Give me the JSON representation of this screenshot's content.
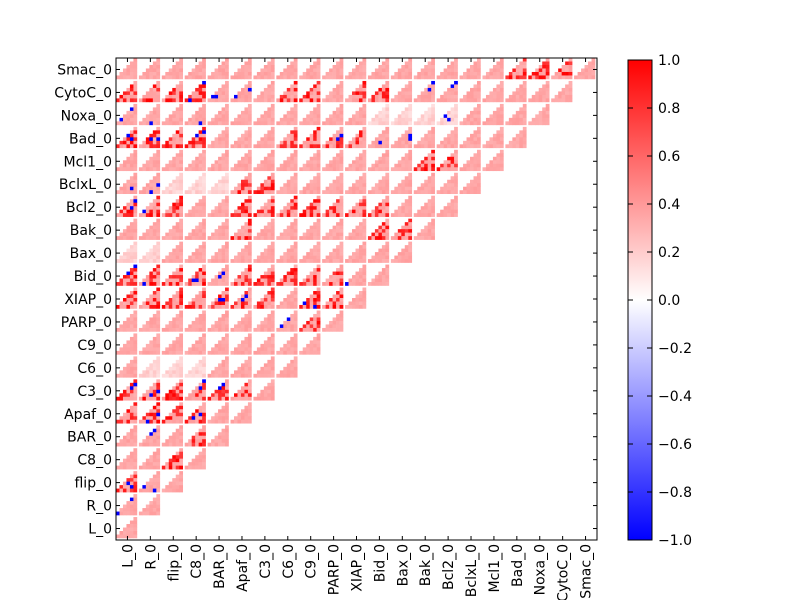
{
  "chart_data": {
    "type": "heatmap",
    "variables": [
      "L_0",
      "R_0",
      "flip_0",
      "C8_0",
      "BAR_0",
      "Apaf_0",
      "C3_0",
      "C6_0",
      "C9_0",
      "PARP_0",
      "XIAP_0",
      "Bid_0",
      "Bax_0",
      "Bak_0",
      "Bcl2_0",
      "BclxL_0",
      "Mcl1_0",
      "Bad_0",
      "Noxa_0",
      "CytoC_0",
      "Smac_0"
    ],
    "x_tick_labels": [
      "L_0",
      "R_0",
      "flip_0",
      "C8_0",
      "BAR_0",
      "Apaf_0",
      "C3_0",
      "C6_0",
      "C9_0",
      "PARP_0",
      "XIAP_0",
      "Bid_0",
      "Bax_0",
      "Bak_0",
      "Bcl2_0",
      "BclxL_0",
      "Mcl1_0",
      "Bad_0",
      "Noxa_0",
      "CytoC_0",
      "Smac_0"
    ],
    "y_tick_labels_top_to_bottom": [
      "Smac_0",
      "CytoC_0",
      "Noxa_0",
      "Bad_0",
      "Mcl1_0",
      "BclxL_0",
      "Bcl2_0",
      "Bak_0",
      "Bax_0",
      "Bid_0",
      "XIAP_0",
      "PARP_0",
      "C9_0",
      "C6_0",
      "C3_0",
      "Apaf_0",
      "BAR_0",
      "C8_0",
      "flip_0",
      "R_0",
      "L_0"
    ],
    "layout": "lower-left triangle of pairwise panels; each panel is a small triangular grid of correlation cells",
    "panel_base_value": 0.35,
    "color_scale": {
      "cmap": "bwr",
      "vmin": -1.0,
      "vmax": 1.0,
      "ticks": [
        "1.0",
        "0.8",
        "0.6",
        "0.4",
        "0.2",
        "0.0",
        "−0.2",
        "−0.4",
        "−0.6",
        "−0.8",
        "−1.0"
      ],
      "tick_values": [
        1.0,
        0.8,
        0.6,
        0.4,
        0.2,
        0.0,
        -0.2,
        -0.4,
        -0.6,
        -0.8,
        -1.0
      ],
      "colors": {
        "low": "#0000ff",
        "mid": "#ffffff",
        "high": "#ff0000"
      }
    },
    "strong_positive_pairs": [
      [
        "Smac_0",
        "Bad_0"
      ],
      [
        "Smac_0",
        "Noxa_0"
      ],
      [
        "Smac_0",
        "CytoC_0"
      ],
      [
        "CytoC_0",
        "L_0"
      ],
      [
        "CytoC_0",
        "R_0"
      ],
      [
        "CytoC_0",
        "flip_0"
      ],
      [
        "CytoC_0",
        "C8_0"
      ],
      [
        "CytoC_0",
        "C6_0"
      ],
      [
        "CytoC_0",
        "C9_0"
      ],
      [
        "CytoC_0",
        "XIAP_0"
      ],
      [
        "CytoC_0",
        "Bid_0"
      ],
      [
        "Bad_0",
        "L_0"
      ],
      [
        "Bad_0",
        "R_0"
      ],
      [
        "Bad_0",
        "flip_0"
      ],
      [
        "Bad_0",
        "C8_0"
      ],
      [
        "Bad_0",
        "C6_0"
      ],
      [
        "Bad_0",
        "C9_0"
      ],
      [
        "Bad_0",
        "PARP_0"
      ],
      [
        "Bad_0",
        "XIAP_0"
      ],
      [
        "Mcl1_0",
        "Bak_0"
      ],
      [
        "Mcl1_0",
        "Bcl2_0"
      ],
      [
        "BclxL_0",
        "Apaf_0"
      ],
      [
        "BclxL_0",
        "C3_0"
      ],
      [
        "Bcl2_0",
        "L_0"
      ],
      [
        "Bcl2_0",
        "R_0"
      ],
      [
        "Bcl2_0",
        "flip_0"
      ],
      [
        "Bcl2_0",
        "Apaf_0"
      ],
      [
        "Bcl2_0",
        "C3_0"
      ],
      [
        "Bcl2_0",
        "C6_0"
      ],
      [
        "Bcl2_0",
        "C9_0"
      ],
      [
        "Bcl2_0",
        "PARP_0"
      ],
      [
        "Bcl2_0",
        "XIAP_0"
      ],
      [
        "Bcl2_0",
        "Bid_0"
      ],
      [
        "Bak_0",
        "Apaf_0"
      ],
      [
        "Bak_0",
        "Bid_0"
      ],
      [
        "Bak_0",
        "Bax_0"
      ],
      [
        "Bid_0",
        "L_0"
      ],
      [
        "Bid_0",
        "R_0"
      ],
      [
        "Bid_0",
        "flip_0"
      ],
      [
        "Bid_0",
        "C8_0"
      ],
      [
        "Bid_0",
        "Apaf_0"
      ],
      [
        "Bid_0",
        "C3_0"
      ],
      [
        "Bid_0",
        "C6_0"
      ],
      [
        "Bid_0",
        "C9_0"
      ],
      [
        "Bid_0",
        "PARP_0"
      ],
      [
        "XIAP_0",
        "L_0"
      ],
      [
        "XIAP_0",
        "R_0"
      ],
      [
        "XIAP_0",
        "flip_0"
      ],
      [
        "XIAP_0",
        "C8_0"
      ],
      [
        "XIAP_0",
        "BAR_0"
      ],
      [
        "XIAP_0",
        "Apaf_0"
      ],
      [
        "XIAP_0",
        "C3_0"
      ],
      [
        "XIAP_0",
        "C9_0"
      ],
      [
        "XIAP_0",
        "PARP_0"
      ],
      [
        "PARP_0",
        "C9_0"
      ],
      [
        "C3_0",
        "L_0"
      ],
      [
        "C3_0",
        "R_0"
      ],
      [
        "C3_0",
        "flip_0"
      ],
      [
        "C3_0",
        "C8_0"
      ],
      [
        "C3_0",
        "BAR_0"
      ],
      [
        "C3_0",
        "Apaf_0"
      ],
      [
        "Apaf_0",
        "L_0"
      ],
      [
        "Apaf_0",
        "R_0"
      ],
      [
        "Apaf_0",
        "flip_0"
      ],
      [
        "Apaf_0",
        "C8_0"
      ],
      [
        "BAR_0",
        "C8_0"
      ],
      [
        "C8_0",
        "flip_0"
      ],
      [
        "flip_0",
        "L_0"
      ]
    ],
    "weak_pairs": [
      [
        "BclxL_0",
        "flip_0"
      ],
      [
        "BclxL_0",
        "C8_0"
      ],
      [
        "BclxL_0",
        "BAR_0"
      ],
      [
        "Bax_0",
        "L_0"
      ],
      [
        "Bax_0",
        "R_0"
      ],
      [
        "C6_0",
        "R_0"
      ],
      [
        "C6_0",
        "flip_0"
      ],
      [
        "C6_0",
        "C8_0"
      ],
      [
        "Mcl1_0",
        "Bad_0"
      ],
      [
        "Noxa_0",
        "Bid_0"
      ],
      [
        "Noxa_0",
        "Bax_0"
      ],
      [
        "Noxa_0",
        "Bak_0"
      ],
      [
        "Noxa_0",
        "Bcl2_0"
      ]
    ],
    "negative_pairs": [
      [
        "BclxL_0",
        "L_0"
      ],
      [
        "BclxL_0",
        "R_0"
      ],
      [
        "Bcl2_0",
        "L_0"
      ],
      [
        "Bcl2_0",
        "R_0"
      ],
      [
        "Bid_0",
        "L_0"
      ],
      [
        "Bid_0",
        "R_0"
      ],
      [
        "Bid_0",
        "C8_0"
      ],
      [
        "Bid_0",
        "BAR_0"
      ],
      [
        "Bid_0",
        "XIAP_0"
      ],
      [
        "Bad_0",
        "L_0"
      ],
      [
        "Bad_0",
        "R_0"
      ],
      [
        "Bad_0",
        "C8_0"
      ],
      [
        "Bad_0",
        "C6_0"
      ],
      [
        "Bad_0",
        "PARP_0"
      ],
      [
        "Bad_0",
        "Bid_0"
      ],
      [
        "Bad_0",
        "Bax_0"
      ],
      [
        "CytoC_0",
        "C8_0"
      ],
      [
        "CytoC_0",
        "BAR_0"
      ],
      [
        "CytoC_0",
        "Apaf_0"
      ],
      [
        "CytoC_0",
        "Bak_0"
      ],
      [
        "CytoC_0",
        "Bcl2_0"
      ],
      [
        "XIAP_0",
        "BAR_0"
      ],
      [
        "XIAP_0",
        "Apaf_0"
      ],
      [
        "XIAP_0",
        "C9_0"
      ],
      [
        "XIAP_0",
        "PARP_0"
      ],
      [
        "C3_0",
        "L_0"
      ],
      [
        "C3_0",
        "R_0"
      ],
      [
        "C3_0",
        "C8_0"
      ],
      [
        "C3_0",
        "BAR_0"
      ],
      [
        "C3_0",
        "Apaf_0"
      ],
      [
        "Noxa_0",
        "L_0"
      ],
      [
        "Noxa_0",
        "R_0"
      ],
      [
        "Noxa_0",
        "C8_0"
      ],
      [
        "Noxa_0",
        "Bcl2_0"
      ],
      [
        "Mcl1_0",
        "Bad_0"
      ],
      [
        "PARP_0",
        "C6_0"
      ],
      [
        "PARP_0",
        "PARP_0"
      ],
      [
        "C9_0",
        "Apaf_0"
      ],
      [
        "C6_0",
        "L_0"
      ],
      [
        "Apaf_0",
        "R_0"
      ],
      [
        "Apaf_0",
        "C8_0"
      ],
      [
        "BAR_0",
        "L_0"
      ],
      [
        "BAR_0",
        "R_0"
      ],
      [
        "C8_0",
        "R_0"
      ],
      [
        "flip_0",
        "L_0"
      ],
      [
        "flip_0",
        "R_0"
      ],
      [
        "R_0",
        "L_0"
      ]
    ]
  }
}
